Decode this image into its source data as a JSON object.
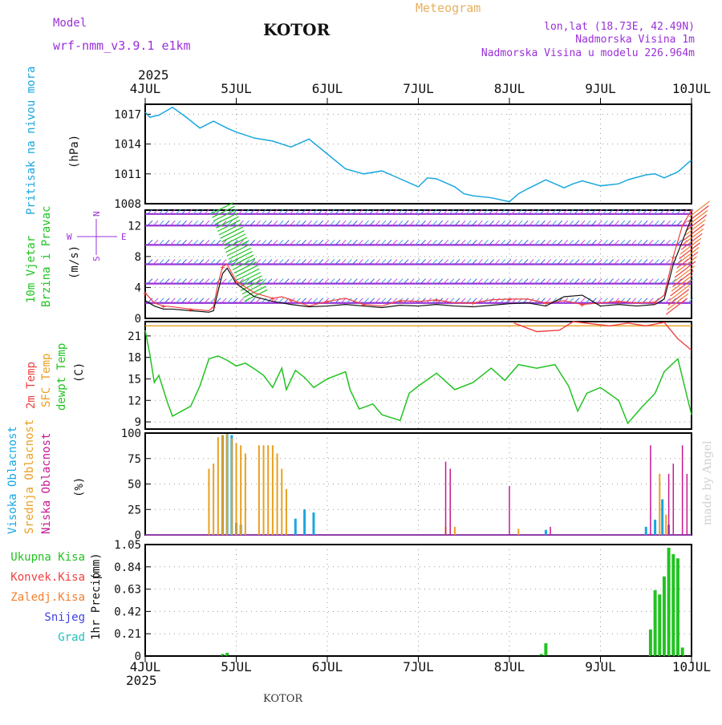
{
  "header": {
    "model_label": "Model",
    "model_name": "wrf-nmm_v3.9.1 e1km",
    "station": "KOTOR",
    "meteogram": "Meteogram",
    "lonlat": "lon,lat (18.73E, 42.49N)",
    "elevation": "Nadmorska Visina 1m",
    "model_elevation": "Nadmorska Visina u modelu 226.964m",
    "year_top": "2025",
    "year_bottom": "2025",
    "footer_station": "KOTOR",
    "watermark": "made by Angel"
  },
  "colors": {
    "pressure": "#1aa7e0",
    "wind_green": "#22c322",
    "temp_red": "#f04040",
    "sfc_orange": "#e8a020",
    "dewpt_green": "#22c322",
    "cloud_high": "#1aa7e0",
    "cloud_mid": "#e8a020",
    "cloud_low": "#c81890",
    "purple": "#9a30d8",
    "rain_total": "#22c322",
    "rain_conv": "#f04040",
    "rain_frozen": "#f08030",
    "snow": "#4040e0",
    "hail": "#20c0c0"
  },
  "chart_data": [
    {
      "type": "line",
      "panel": "pressure",
      "ylabel": "Pritisak na nivou mora",
      "unit": "(hPa)",
      "ylim": [
        1008,
        1018
      ],
      "yticks": [
        1008,
        1011,
        1014,
        1017
      ],
      "xticks": [
        "4JUL",
        "5JUL",
        "6JUL",
        "7JUL",
        "8JUL",
        "9JUL",
        "10JUL"
      ],
      "grid": true,
      "x": [
        0,
        0.05,
        0.15,
        0.3,
        0.45,
        0.6,
        0.75,
        0.9,
        1.0,
        1.2,
        1.4,
        1.6,
        1.8,
        2.0,
        2.2,
        2.4,
        2.6,
        2.8,
        3.0,
        3.1,
        3.2,
        3.4,
        3.5,
        3.6,
        3.8,
        4.0,
        4.1,
        4.2,
        4.4,
        4.6,
        4.7,
        4.8,
        5.0,
        5.2,
        5.3,
        5.5,
        5.6,
        5.7,
        5.85,
        6.0
      ],
      "series": [
        {
          "values": [
            1017.2,
            1016.7,
            1016.9,
            1017.7,
            1016.7,
            1015.6,
            1016.3,
            1015.6,
            1015.2,
            1014.6,
            1014.3,
            1013.7,
            1014.5,
            1013.0,
            1011.5,
            1011.0,
            1011.3,
            1010.5,
            1009.7,
            1010.6,
            1010.5,
            1009.7,
            1009.0,
            1008.8,
            1008.6,
            1008.2,
            1009.0,
            1009.5,
            1010.4,
            1009.6,
            1010.0,
            1010.3,
            1009.8,
            1010.0,
            1010.4,
            1010.9,
            1011.0,
            1010.6,
            1011.2,
            1012.4
          ]
        }
      ]
    },
    {
      "type": "line",
      "panel": "wind",
      "ylabel": [
        "10m Vjetar",
        "Brzina i Pravac"
      ],
      "unit": "(m/s)",
      "compass": {
        "north": "N",
        "west": "W",
        "east": "E",
        "south": "S"
      },
      "ylim": [
        0,
        14
      ],
      "yticks": [
        0,
        4,
        8,
        12
      ],
      "grid": true,
      "x": [
        0,
        0.1,
        0.2,
        0.3,
        0.5,
        0.7,
        0.75,
        0.8,
        0.85,
        0.9,
        1.0,
        1.2,
        1.4,
        1.5,
        1.6,
        1.8,
        2.0,
        2.2,
        2.4,
        2.6,
        2.8,
        3.0,
        3.2,
        3.4,
        3.6,
        3.8,
        4.0,
        4.2,
        4.4,
        4.6,
        4.8,
        5.0,
        5.2,
        5.4,
        5.6,
        5.7,
        5.8,
        5.9,
        6.0
      ],
      "series": [
        {
          "name": "gust",
          "values": [
            3.3,
            2.0,
            1.6,
            1.5,
            1.2,
            1.0,
            1.5,
            4.5,
            6.7,
            7.0,
            4.8,
            3.3,
            2.6,
            2.8,
            2.4,
            1.6,
            2.2,
            2.6,
            1.8,
            1.6,
            2.3,
            2.2,
            2.4,
            2.0,
            2.0,
            2.4,
            2.5,
            2.5,
            2.0,
            2.3,
            1.8,
            2.0,
            2.2,
            2.0,
            2.1,
            3.0,
            8.0,
            12.0,
            14.0
          ]
        },
        {
          "name": "speed",
          "values": [
            2.3,
            1.6,
            1.2,
            1.2,
            1.0,
            0.8,
            1.0,
            3.5,
            5.8,
            6.5,
            4.5,
            2.8,
            2.2,
            2.0,
            1.8,
            1.5,
            1.6,
            1.8,
            1.6,
            1.4,
            1.7,
            1.6,
            1.8,
            1.6,
            1.5,
            1.7,
            1.9,
            2.0,
            1.6,
            2.8,
            3.0,
            1.6,
            1.8,
            1.6,
            1.8,
            2.5,
            7.0,
            10.0,
            13.0
          ]
        }
      ],
      "levels": [
        2,
        4.5,
        7,
        9.5,
        12,
        13.5
      ]
    },
    {
      "type": "line",
      "panel": "temperature",
      "ylabel": [
        "2m Temp",
        "SFC Temp",
        "dewpt Temp"
      ],
      "unit": "(C)",
      "ylim": [
        8,
        23
      ],
      "yticks": [
        9,
        12,
        15,
        18,
        21
      ],
      "grid": true,
      "sfc_constant": 22.4,
      "red_x": [
        4.05,
        4.3,
        4.55,
        4.7,
        5.1,
        5.3,
        5.5,
        5.7,
        5.85,
        6.0
      ],
      "red_values": [
        22.8,
        21.6,
        21.8,
        23.0,
        22.4,
        22.8,
        22.4,
        22.9,
        20.6,
        19.0
      ],
      "x": [
        0,
        0.05,
        0.1,
        0.15,
        0.25,
        0.3,
        0.4,
        0.5,
        0.6,
        0.7,
        0.8,
        0.9,
        1.0,
        1.1,
        1.2,
        1.3,
        1.4,
        1.5,
        1.55,
        1.65,
        1.75,
        1.85,
        2.0,
        2.2,
        2.25,
        2.35,
        2.5,
        2.6,
        2.8,
        2.9,
        3.0,
        3.2,
        3.4,
        3.6,
        3.8,
        3.95,
        4.1,
        4.3,
        4.5,
        4.65,
        4.75,
        4.85,
        5.0,
        5.2,
        5.3,
        5.45,
        5.6,
        5.7,
        5.85,
        6.0
      ],
      "series": [
        {
          "name": "dewpt",
          "values": [
            21.8,
            18.5,
            14.5,
            15.5,
            11.5,
            9.8,
            10.5,
            11.2,
            14.0,
            17.8,
            18.2,
            17.6,
            16.8,
            17.2,
            16.4,
            15.5,
            13.8,
            16.5,
            13.5,
            16.2,
            15.2,
            13.8,
            15.0,
            16.0,
            13.5,
            10.8,
            11.5,
            10.0,
            9.2,
            13.0,
            14.0,
            15.8,
            13.5,
            14.5,
            16.5,
            14.8,
            17.0,
            16.5,
            17.0,
            14.0,
            10.5,
            13.0,
            13.8,
            12.0,
            8.8,
            11.0,
            13.0,
            16.0,
            17.8,
            10.0
          ]
        }
      ]
    },
    {
      "type": "bar",
      "panel": "clouds",
      "ylabel": [
        "Visoka Oblacnost",
        "Srednja Oblacnost",
        "Niska Oblacnost"
      ],
      "unit": "(%)",
      "ylim": [
        0,
        100
      ],
      "yticks": [
        0,
        25,
        50,
        75,
        100
      ],
      "grid": true,
      "series": [
        {
          "name": "high",
          "x": [
            0.85,
            0.9,
            0.95,
            1.0,
            1.05,
            1.65,
            1.75,
            1.85,
            4.4,
            5.5,
            5.6,
            5.68,
            5.75
          ],
          "values": [
            98,
            99,
            98,
            12,
            10,
            16,
            25,
            22,
            5,
            8,
            15,
            35,
            10
          ]
        },
        {
          "name": "mid",
          "x": [
            0.7,
            0.75,
            0.8,
            0.85,
            0.9,
            0.95,
            1.0,
            1.05,
            1.1,
            1.25,
            1.3,
            1.35,
            1.4,
            1.45,
            1.5,
            1.55,
            3.3,
            3.4,
            4.1,
            5.65,
            5.72
          ],
          "values": [
            65,
            70,
            96,
            98,
            99,
            95,
            90,
            88,
            80,
            88,
            88,
            88,
            88,
            80,
            65,
            45,
            8,
            8,
            6,
            60,
            20
          ]
        },
        {
          "name": "low",
          "x": [
            3.3,
            3.35,
            4.0,
            4.45,
            5.55,
            5.75,
            5.8,
            5.9,
            5.95
          ],
          "values": [
            72,
            65,
            48,
            8,
            88,
            60,
            70,
            88,
            60
          ]
        }
      ]
    },
    {
      "type": "bar",
      "panel": "precip",
      "ylabel": "1hr Precip",
      "unit": "(mm)",
      "legend": [
        "Ukupna Kisa",
        "Konvek.Kisa",
        "Zaledj.Kisa",
        "Snijeg",
        "Grad"
      ],
      "ylim": [
        0,
        1.05
      ],
      "yticks": [
        0,
        0.21,
        0.42,
        0.63,
        0.84,
        1.05
      ],
      "grid": true,
      "series": [
        {
          "name": "Ukupna Kisa",
          "x": [
            0.85,
            0.9,
            4.35,
            4.4,
            5.55,
            5.6,
            5.65,
            5.7,
            5.75,
            5.8,
            5.85,
            5.9
          ],
          "values": [
            0.02,
            0.03,
            0.02,
            0.12,
            0.25,
            0.62,
            0.58,
            0.75,
            1.02,
            0.96,
            0.92,
            0.08
          ]
        }
      ]
    }
  ]
}
